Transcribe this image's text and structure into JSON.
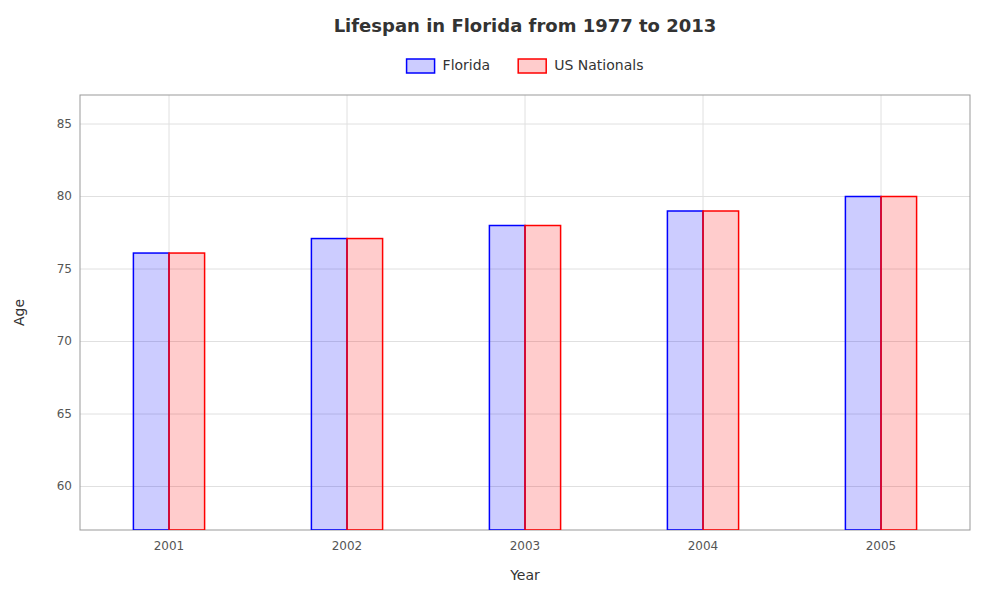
{
  "chart_data": {
    "type": "bar",
    "title": "Lifespan in Florida from 1977 to 2013",
    "xlabel": "Year",
    "ylabel": "Age",
    "categories": [
      "2001",
      "2002",
      "2003",
      "2004",
      "2005"
    ],
    "series": [
      {
        "name": "Florida",
        "color": "#0000ff",
        "values": [
          76.1,
          77.1,
          78.0,
          79.0,
          80.0
        ]
      },
      {
        "name": "US Nationals",
        "color": "#ff0000",
        "values": [
          76.1,
          77.1,
          78.0,
          79.0,
          80.0
        ]
      }
    ],
    "ylim": [
      57,
      87
    ],
    "yticks": [
      60,
      65,
      70,
      75,
      80,
      85
    ],
    "grid": true,
    "legend": "top"
  }
}
